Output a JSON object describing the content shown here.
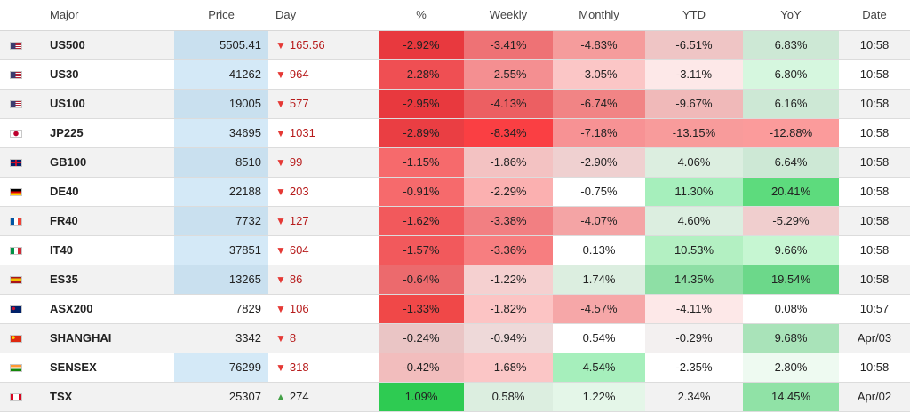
{
  "header": {
    "major": "Major",
    "price": "Price",
    "day": "Day",
    "pct": "%",
    "weekly": "Weekly",
    "monthly": "Monthly",
    "ytd": "YTD",
    "yoy": "YoY",
    "date": "Date"
  },
  "rows": [
    {
      "flag": "us-flag-icon",
      "name": "US500",
      "price": "5505.41",
      "price_highlight": true,
      "day_dir": "down",
      "day": "165.56",
      "pct": "-2.92%",
      "weekly": "-3.41%",
      "monthly": "-4.83%",
      "ytd": "-6.51%",
      "yoy": "6.83%",
      "date": "10:58"
    },
    {
      "flag": "us-flag-icon",
      "name": "US30",
      "price": "41262",
      "price_highlight": true,
      "day_dir": "down",
      "day": "964",
      "pct": "-2.28%",
      "weekly": "-2.55%",
      "monthly": "-3.05%",
      "ytd": "-3.11%",
      "yoy": "6.80%",
      "date": "10:58"
    },
    {
      "flag": "us-flag-icon",
      "name": "US100",
      "price": "19005",
      "price_highlight": true,
      "day_dir": "down",
      "day": "577",
      "pct": "-2.95%",
      "weekly": "-4.13%",
      "monthly": "-6.74%",
      "ytd": "-9.67%",
      "yoy": "6.16%",
      "date": "10:58"
    },
    {
      "flag": "jp-flag-icon",
      "name": "JP225",
      "price": "34695",
      "price_highlight": true,
      "day_dir": "down",
      "day": "1031",
      "pct": "-2.89%",
      "weekly": "-8.34%",
      "monthly": "-7.18%",
      "ytd": "-13.15%",
      "yoy": "-12.88%",
      "date": "10:58"
    },
    {
      "flag": "gb-flag-icon",
      "name": "GB100",
      "price": "8510",
      "price_highlight": true,
      "day_dir": "down",
      "day": "99",
      "pct": "-1.15%",
      "weekly": "-1.86%",
      "monthly": "-2.90%",
      "ytd": "4.06%",
      "yoy": "6.64%",
      "date": "10:58"
    },
    {
      "flag": "de-flag-icon",
      "name": "DE40",
      "price": "22188",
      "price_highlight": true,
      "day_dir": "down",
      "day": "203",
      "pct": "-0.91%",
      "weekly": "-2.29%",
      "monthly": "-0.75%",
      "ytd": "11.30%",
      "yoy": "20.41%",
      "date": "10:58"
    },
    {
      "flag": "fr-flag-icon",
      "name": "FR40",
      "price": "7732",
      "price_highlight": true,
      "day_dir": "down",
      "day": "127",
      "pct": "-1.62%",
      "weekly": "-3.38%",
      "monthly": "-4.07%",
      "ytd": "4.60%",
      "yoy": "-5.29%",
      "date": "10:58"
    },
    {
      "flag": "it-flag-icon",
      "name": "IT40",
      "price": "37851",
      "price_highlight": true,
      "day_dir": "down",
      "day": "604",
      "pct": "-1.57%",
      "weekly": "-3.36%",
      "monthly": "0.13%",
      "ytd": "10.53%",
      "yoy": "9.66%",
      "date": "10:58"
    },
    {
      "flag": "es-flag-icon",
      "name": "ES35",
      "price": "13265",
      "price_highlight": true,
      "day_dir": "down",
      "day": "86",
      "pct": "-0.64%",
      "weekly": "-1.22%",
      "monthly": "1.74%",
      "ytd": "14.35%",
      "yoy": "19.54%",
      "date": "10:58"
    },
    {
      "flag": "au-flag-icon",
      "name": "ASX200",
      "price": "7829",
      "price_highlight": false,
      "day_dir": "down",
      "day": "106",
      "pct": "-1.33%",
      "weekly": "-1.82%",
      "monthly": "-4.57%",
      "ytd": "-4.11%",
      "yoy": "0.08%",
      "date": "10:57"
    },
    {
      "flag": "cn-flag-icon",
      "name": "SHANGHAI",
      "price": "3342",
      "price_highlight": false,
      "day_dir": "down",
      "day": "8",
      "pct": "-0.24%",
      "weekly": "-0.94%",
      "monthly": "0.54%",
      "ytd": "-0.29%",
      "yoy": "9.68%",
      "date": "Apr/03"
    },
    {
      "flag": "in-flag-icon",
      "name": "SENSEX",
      "price": "76299",
      "price_highlight": true,
      "day_dir": "down",
      "day": "318",
      "pct": "-0.42%",
      "weekly": "-1.68%",
      "monthly": "4.54%",
      "ytd": "-2.35%",
      "yoy": "2.80%",
      "date": "10:58"
    },
    {
      "flag": "ca-flag-icon",
      "name": "TSX",
      "price": "25307",
      "price_highlight": false,
      "day_dir": "up",
      "day": "274",
      "pct": "1.09%",
      "weekly": "0.58%",
      "monthly": "1.22%",
      "ytd": "2.34%",
      "yoy": "14.45%",
      "date": "Apr/02"
    }
  ],
  "colors": {
    "pct": [
      "#e8393e",
      "#ef4f53",
      "#e8393e",
      "#ea3e43",
      "#f66a6c",
      "#f66a6c",
      "#f2595c",
      "#f2595c",
      "#ec6a6d",
      "#f04848",
      "#eac5c5",
      "#f2bdbd",
      "#2ecb52"
    ],
    "weekly": [
      "#ee7275",
      "#f48f91",
      "#ec5f62",
      "#fa3f43",
      "#f3c2c2",
      "#fbb0b0",
      "#f27f82",
      "#f77e80",
      "#f5d0d0",
      "#fcc4c4",
      "#eed9d9",
      "#fbc6c6",
      "#dceee0"
    ],
    "monthly": [
      "#f59c9c",
      "#fbc6c6",
      "#f18485",
      "#f79294",
      "#efd0d0",
      "#ffffff",
      "#f4a4a5",
      "#ffffff",
      "#dceee0",
      "#f6a7a8",
      "#ffffff",
      "#a6efbc",
      "#e4f6e8"
    ],
    "ytd": [
      "#efc5c5",
      "#fde8e8",
      "#f0b9b9",
      "#f89b9b",
      "#dceee0",
      "#a6efbc",
      "#dceee0",
      "#b3f0c2",
      "#8edfa5",
      "#fde8e8",
      "#f3f0f0",
      "#ffffff",
      "#f2f2f2"
    ],
    "yoy": [
      "#cde8d5",
      "#d6f7df",
      "#cde8d5",
      "#fb9b9b",
      "#cde8d5",
      "#5ddb7d",
      "#f0cece",
      "#c6f6d2",
      "#6cd88a",
      "#ffffff",
      "#a9e3b9",
      "#eefaf1",
      "#90e2a6"
    ]
  }
}
